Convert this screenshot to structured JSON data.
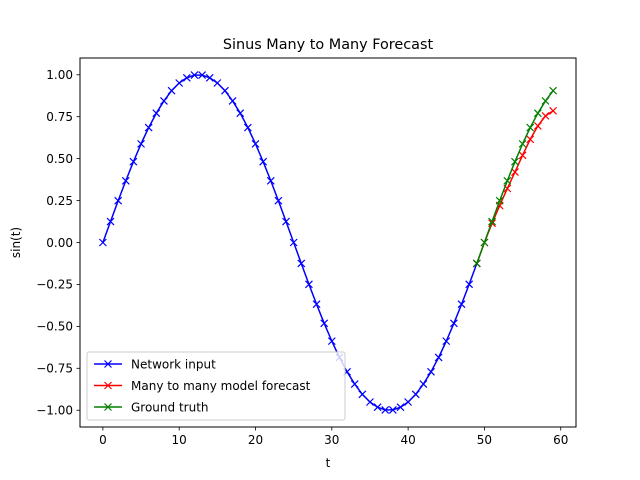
{
  "chart_data": {
    "type": "line",
    "title": "Sinus Many to Many Forecast",
    "xlabel": "t",
    "ylabel": "sin(t)",
    "xlim": [
      -3,
      62
    ],
    "ylim": [
      -1.1,
      1.1
    ],
    "xticks": [
      0,
      10,
      20,
      30,
      40,
      50,
      60
    ],
    "xtick_labels": [
      "0",
      "10",
      "20",
      "30",
      "40",
      "50",
      "60"
    ],
    "yticks": [
      -1.0,
      -0.75,
      -0.5,
      -0.25,
      0.0,
      0.25,
      0.5,
      0.75,
      1.0
    ],
    "ytick_labels": [
      "−1.00",
      "−0.75",
      "−0.50",
      "−0.25",
      "0.00",
      "0.25",
      "0.50",
      "0.75",
      "1.00"
    ],
    "grid": false,
    "legend_placement": "lower-left",
    "series": [
      {
        "name": "Network input",
        "color": "#0000ff",
        "marker": "x",
        "x": [
          0,
          1,
          2,
          3,
          4,
          5,
          6,
          7,
          8,
          9,
          10,
          11,
          12,
          13,
          14,
          15,
          16,
          17,
          18,
          19,
          20,
          21,
          22,
          23,
          24,
          25,
          26,
          27,
          28,
          29,
          30,
          31,
          32,
          33,
          34,
          35,
          36,
          37,
          38,
          39,
          40,
          41,
          42,
          43,
          44,
          45,
          46,
          47,
          48,
          49
        ],
        "y": [
          0.0,
          0.125,
          0.249,
          0.368,
          0.482,
          0.588,
          0.685,
          0.771,
          0.844,
          0.905,
          0.951,
          0.982,
          0.998,
          0.998,
          0.982,
          0.951,
          0.905,
          0.844,
          0.771,
          0.685,
          0.588,
          0.482,
          0.368,
          0.249,
          0.125,
          0.0,
          -0.125,
          -0.249,
          -0.368,
          -0.482,
          -0.588,
          -0.685,
          -0.771,
          -0.844,
          -0.905,
          -0.951,
          -0.982,
          -0.998,
          -0.998,
          -0.982,
          -0.951,
          -0.905,
          -0.844,
          -0.771,
          -0.685,
          -0.588,
          -0.482,
          -0.368,
          -0.249,
          -0.125
        ]
      },
      {
        "name": "Many to many model forecast",
        "color": "#ff0000",
        "marker": "x",
        "x": [
          49,
          50,
          51,
          52,
          53,
          54,
          55,
          56,
          57,
          58,
          59
        ],
        "y": [
          -0.125,
          0.0,
          0.115,
          0.22,
          0.322,
          0.42,
          0.52,
          0.615,
          0.695,
          0.755,
          0.785
        ]
      },
      {
        "name": "Ground truth",
        "color": "#008000",
        "marker": "x",
        "x": [
          49,
          50,
          51,
          52,
          53,
          54,
          55,
          56,
          57,
          58,
          59
        ],
        "y": [
          -0.125,
          0.0,
          0.125,
          0.249,
          0.368,
          0.482,
          0.588,
          0.685,
          0.771,
          0.844,
          0.905
        ]
      }
    ]
  }
}
